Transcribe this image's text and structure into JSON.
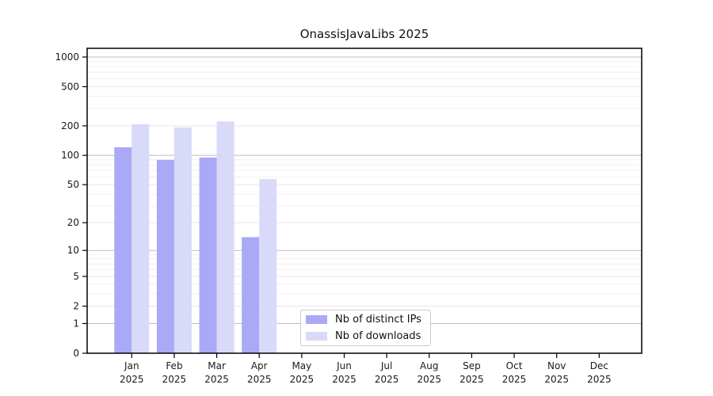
{
  "chart_data": {
    "type": "bar",
    "title": "OnassisJavaLibs 2025",
    "categories": [
      "Jan",
      "Feb",
      "Mar",
      "Apr",
      "May",
      "Jun",
      "Jul",
      "Aug",
      "Sep",
      "Oct",
      "Nov",
      "Dec"
    ],
    "category_year": "2025",
    "series": [
      {
        "name": "Nb of distinct IPs",
        "color": "#a9a9f7",
        "values": [
          121,
          90,
          95,
          14,
          null,
          null,
          null,
          null,
          null,
          null,
          null,
          null
        ]
      },
      {
        "name": "Nb of downloads",
        "color": "#d9d9f9",
        "values": [
          208,
          193,
          222,
          57,
          null,
          null,
          null,
          null,
          null,
          null,
          null,
          null
        ]
      }
    ],
    "yticks": [
      0,
      1,
      2,
      5,
      10,
      20,
      50,
      100,
      200,
      500,
      1000
    ],
    "y_scale": "log10(value+1)",
    "ylim": [
      0,
      1200
    ],
    "grid": true,
    "legend_position": "lower-center-inside",
    "colors": {
      "decade_gridline": "#bdbdbd",
      "major_gridline": "#e6e6e6",
      "minor_gridline": "#efefef",
      "spine": "#000000",
      "tick": "#000000",
      "text": "#1a1a1a",
      "legend_border": "#cccccc",
      "legend_background": "#ffffff"
    }
  }
}
